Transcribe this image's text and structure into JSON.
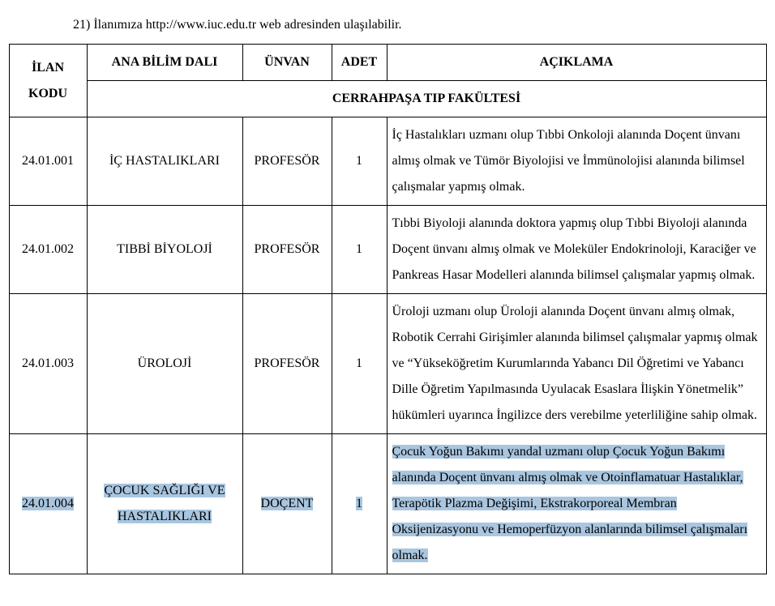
{
  "intro": "21) İlanımıza http://www.iuc.edu.tr web adresinden ulaşılabilir.",
  "table": {
    "headers": {
      "ilan_kodu": "İLAN KODU",
      "ana_bilim_dali": "ANA BİLİM DALI",
      "unvan": "ÜNVAN",
      "adet": "ADET",
      "aciklama": "AÇIKLAMA"
    },
    "subheader": "CERRAHPAŞA TIP FAKÜLTESİ",
    "rows": [
      {
        "kod": "24.01.001",
        "dal": "İÇ HASTALIKLARI",
        "unvan": "PROFESÖR",
        "adet": "1",
        "aciklama": "İç Hastalıkları uzmanı olup Tıbbi Onkoloji alanında Doçent ünvanı almış olmak ve Tümör Biyolojisi ve İmmünolojisi alanında bilimsel çalışmalar yapmış olmak.",
        "highlight": false
      },
      {
        "kod": "24.01.002",
        "dal": "TIBBİ BİYOLOJİ",
        "unvan": "PROFESÖR",
        "adet": "1",
        "aciklama": "Tıbbi Biyoloji alanında doktora yapmış olup Tıbbi Biyoloji alanında Doçent ünvanı almış olmak ve Moleküler Endokrinoloji, Karaciğer ve Pankreas Hasar Modelleri alanında bilimsel çalışmalar yapmış olmak.",
        "highlight": false
      },
      {
        "kod": "24.01.003",
        "dal": "ÜROLOJİ",
        "unvan": "PROFESÖR",
        "adet": "1",
        "aciklama": "Üroloji uzmanı olup Üroloji alanında Doçent ünvanı almış olmak, Robotik Cerrahi Girişimler alanında bilimsel çalışmalar yapmış olmak ve “Yükseköğretim Kurumlarında Yabancı Dil Öğretimi ve Yabancı Dille Öğretim Yapılmasında Uyulacak Esaslara İlişkin Yönetmelik” hükümleri uyarınca İngilizce ders verebilme yeterliliğine sahip olmak.",
        "highlight": false
      },
      {
        "kod": "24.01.004",
        "dal": "ÇOCUK SAĞLIĞI VE HASTALIKLARI",
        "unvan": "DOÇENT",
        "adet": "1",
        "aciklama": "Çocuk Yoğun Bakımı yandal uzmanı olup Çocuk Yoğun Bakımı alanında Doçent ünvanı almış olmak ve Otoinflamatuar Hastalıklar, Terapötik Plazma Değişimi, Ekstrakorporeal Membran Oksijenizasyonu ve Hemoperfüzyon alanlarında bilimsel çalışmaları olmak.",
        "highlight": true
      }
    ]
  },
  "style": {
    "highlight_color": "#a9c6e0",
    "border_color": "#000000",
    "font_family": "Times New Roman",
    "font_size_pt": 12,
    "line_height": 2
  }
}
